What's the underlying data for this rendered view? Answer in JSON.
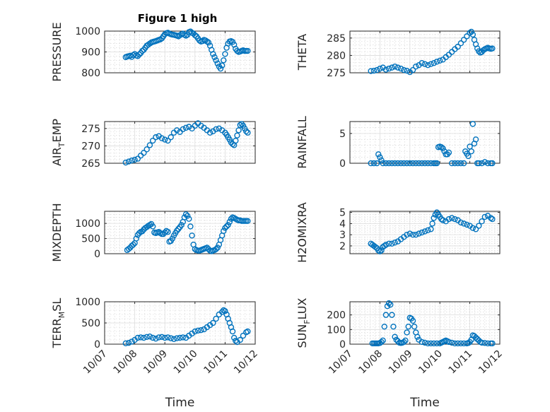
{
  "title": "Figure 1 high",
  "x_ticks": [
    "10/07",
    "10/08",
    "10/09",
    "10/10",
    "10/11",
    "10/12"
  ],
  "x_label": "Time",
  "chart_data": [
    {
      "type": "scatter",
      "panel": "left-1",
      "ylabel": "PRESSURE",
      "ylim": [
        800,
        1000
      ],
      "yticks": [
        "800",
        "900",
        "1000"
      ],
      "xlim": [
        0,
        5
      ],
      "grid": "on, minor on",
      "title": "Figure 1 high",
      "x": [
        0.7,
        0.75,
        0.8,
        0.85,
        0.9,
        0.95,
        1.0,
        1.05,
        1.1,
        1.15,
        1.2,
        1.25,
        1.3,
        1.35,
        1.4,
        1.45,
        1.5,
        1.55,
        1.6,
        1.65,
        1.7,
        1.75,
        1.8,
        1.85,
        1.9,
        1.95,
        2.0,
        2.05,
        2.1,
        2.15,
        2.2,
        2.25,
        2.3,
        2.35,
        2.4,
        2.45,
        2.5,
        2.55,
        2.6,
        2.65,
        2.7,
        2.75,
        2.8,
        2.85,
        2.9,
        2.95,
        3.0,
        3.05,
        3.1,
        3.15,
        3.2,
        3.25,
        3.3,
        3.35,
        3.4,
        3.45,
        3.5,
        3.55,
        3.6,
        3.65,
        3.7,
        3.75,
        3.8,
        3.85,
        3.9,
        3.95,
        4.0,
        4.05,
        4.1,
        4.15,
        4.2,
        4.25,
        4.3,
        4.35,
        4.4,
        4.45,
        4.5,
        4.55,
        4.6,
        4.65,
        4.7,
        4.75
      ],
      "y": [
        875,
        878,
        880,
        882,
        876,
        885,
        890,
        883,
        880,
        888,
        895,
        905,
        910,
        920,
        930,
        935,
        940,
        945,
        948,
        950,
        952,
        955,
        958,
        960,
        965,
        975,
        985,
        990,
        992,
        988,
        985,
        983,
        982,
        980,
        978,
        975,
        980,
        985,
        988,
        982,
        978,
        982,
        995,
        998,
        992,
        988,
        980,
        975,
        965,
        955,
        950,
        952,
        958,
        955,
        950,
        945,
        930,
        910,
        890,
        875,
        860,
        845,
        830,
        820,
        835,
        860,
        890,
        920,
        940,
        950,
        952,
        948,
        935,
        915,
        905,
        900,
        902,
        905,
        908,
        905,
        905,
        905
      ]
    },
    {
      "type": "scatter",
      "panel": "right-1",
      "ylabel": "THETA",
      "ylim": [
        275,
        287
      ],
      "yticks": [
        "275",
        "280",
        "285"
      ],
      "xlim": [
        0,
        5
      ],
      "grid": "on, minor on",
      "x": [
        0.7,
        0.8,
        0.9,
        1.0,
        1.1,
        1.2,
        1.3,
        1.4,
        1.5,
        1.6,
        1.7,
        1.8,
        1.9,
        2.0,
        2.1,
        2.2,
        2.3,
        2.4,
        2.5,
        2.6,
        2.7,
        2.8,
        2.9,
        3.0,
        3.1,
        3.2,
        3.3,
        3.4,
        3.5,
        3.6,
        3.7,
        3.8,
        3.9,
        4.0,
        4.05,
        4.1,
        4.15,
        4.2,
        4.25,
        4.3,
        4.35,
        4.4,
        4.45,
        4.5,
        4.55,
        4.6,
        4.65,
        4.7,
        4.75
      ],
      "y": [
        275.5,
        275.6,
        275.8,
        276.2,
        276.5,
        275.9,
        276.2,
        276.5,
        276.8,
        276.5,
        276.2,
        275.8,
        275.6,
        275.2,
        275.8,
        276.8,
        277.2,
        277.8,
        277.5,
        277.2,
        277.5,
        277.8,
        278.2,
        278.5,
        278.8,
        279.5,
        280.2,
        281.0,
        281.8,
        282.5,
        283.5,
        284.5,
        285.5,
        286.5,
        286.8,
        286.0,
        284.5,
        283.2,
        282.0,
        281.2,
        280.8,
        281.0,
        281.5,
        281.8,
        282.0,
        282.2,
        282.0,
        281.9,
        282.0
      ]
    },
    {
      "type": "scatter",
      "panel": "left-2",
      "ylabel": "AIR_TEMP",
      "ylim": [
        265,
        277
      ],
      "yticks": [
        "265",
        "270",
        "275"
      ],
      "xlim": [
        0,
        5
      ],
      "grid": "on, minor on",
      "x": [
        0.7,
        0.8,
        0.9,
        1.0,
        1.1,
        1.2,
        1.3,
        1.4,
        1.5,
        1.6,
        1.7,
        1.8,
        1.9,
        2.0,
        2.1,
        2.2,
        2.3,
        2.4,
        2.5,
        2.6,
        2.7,
        2.8,
        2.9,
        3.0,
        3.1,
        3.2,
        3.3,
        3.4,
        3.5,
        3.6,
        3.7,
        3.8,
        3.9,
        4.0,
        4.05,
        4.1,
        4.15,
        4.2,
        4.25,
        4.3,
        4.35,
        4.4,
        4.45,
        4.5,
        4.55,
        4.6,
        4.65,
        4.7,
        4.75
      ],
      "y": [
        265.2,
        265.5,
        265.8,
        266.0,
        266.3,
        267.2,
        268.0,
        269.0,
        270.2,
        271.5,
        272.5,
        272.8,
        272.2,
        271.8,
        271.5,
        272.5,
        273.8,
        274.5,
        274.0,
        274.8,
        275.2,
        275.5,
        275.0,
        275.8,
        276.5,
        275.8,
        275.2,
        274.5,
        273.8,
        274.2,
        274.8,
        275.0,
        274.5,
        273.8,
        273.2,
        272.5,
        271.8,
        271.0,
        270.5,
        270.2,
        271.5,
        273.0,
        274.5,
        276.0,
        276.3,
        275.8,
        275.0,
        274.2,
        273.8
      ]
    },
    {
      "type": "scatter",
      "panel": "right-2",
      "ylabel": "RAINFALL",
      "ylim": [
        0,
        7
      ],
      "yticks": [
        "0",
        "5"
      ],
      "xlim": [
        0,
        5
      ],
      "grid": "on, minor on",
      "x": [
        0.7,
        0.8,
        0.9,
        0.95,
        1.0,
        1.05,
        1.1,
        1.2,
        1.3,
        1.4,
        1.5,
        1.6,
        1.7,
        1.8,
        1.9,
        2.0,
        2.1,
        2.2,
        2.3,
        2.4,
        2.5,
        2.6,
        2.7,
        2.8,
        2.85,
        2.9,
        2.95,
        3.0,
        3.05,
        3.1,
        3.15,
        3.2,
        3.25,
        3.3,
        3.4,
        3.5,
        3.6,
        3.7,
        3.8,
        3.85,
        3.9,
        3.95,
        4.0,
        4.05,
        4.1,
        4.15,
        4.2,
        4.25,
        4.3,
        4.4,
        4.5,
        4.6,
        4.7,
        4.75
      ],
      "y": [
        0,
        0,
        0,
        1.5,
        1.0,
        0.5,
        0,
        0,
        0,
        0,
        0,
        0,
        0,
        0,
        0,
        0,
        0,
        0,
        0,
        0,
        0,
        0,
        0,
        0,
        0,
        0,
        2.7,
        2.8,
        2.7,
        2.5,
        2.0,
        1.5,
        1.5,
        1.8,
        0,
        0,
        0,
        0,
        0,
        2.0,
        1.6,
        1.2,
        2.8,
        2.0,
        6.6,
        3.3,
        4.0,
        0,
        0,
        0,
        0.2,
        0,
        0,
        0
      ]
    },
    {
      "type": "scatter",
      "panel": "left-3",
      "ylabel": "MIXDEPTH",
      "ylim": [
        0,
        1400
      ],
      "yticks": [
        "0",
        "500",
        "1000"
      ],
      "xlim": [
        0,
        5
      ],
      "grid": "on, minor on",
      "x": [
        0.75,
        0.8,
        0.85,
        0.9,
        0.95,
        1.0,
        1.05,
        1.1,
        1.15,
        1.2,
        1.25,
        1.3,
        1.35,
        1.4,
        1.45,
        1.5,
        1.55,
        1.6,
        1.65,
        1.7,
        1.75,
        1.8,
        1.85,
        1.9,
        1.95,
        2.0,
        2.05,
        2.1,
        2.15,
        2.2,
        2.25,
        2.3,
        2.35,
        2.4,
        2.45,
        2.5,
        2.55,
        2.6,
        2.65,
        2.7,
        2.75,
        2.8,
        2.85,
        2.9,
        2.95,
        3.0,
        3.05,
        3.1,
        3.15,
        3.2,
        3.25,
        3.3,
        3.35,
        3.4,
        3.45,
        3.5,
        3.55,
        3.6,
        3.65,
        3.7,
        3.75,
        3.8,
        3.85,
        3.9,
        3.95,
        4.0,
        4.05,
        4.1,
        4.15,
        4.2,
        4.25,
        4.3,
        4.35,
        4.4,
        4.45,
        4.5,
        4.55,
        4.6,
        4.65,
        4.7,
        4.75
      ],
      "y": [
        120,
        160,
        200,
        260,
        300,
        350,
        500,
        620,
        680,
        720,
        740,
        800,
        850,
        880,
        920,
        950,
        980,
        900,
        700,
        680,
        700,
        720,
        680,
        650,
        650,
        700,
        750,
        720,
        400,
        420,
        500,
        600,
        680,
        760,
        820,
        880,
        950,
        1050,
        1200,
        1300,
        1250,
        1150,
        900,
        600,
        300,
        150,
        120,
        100,
        100,
        120,
        140,
        160,
        180,
        200,
        150,
        100,
        80,
        100,
        120,
        150,
        200,
        300,
        450,
        600,
        750,
        850,
        900,
        950,
        1050,
        1150,
        1200,
        1180,
        1150,
        1120,
        1100,
        1100,
        1080,
        1080,
        1080,
        1080,
        1080
      ]
    },
    {
      "type": "scatter",
      "panel": "right-3",
      "ylabel": "H2OMIXRA",
      "ylim": [
        1.3,
        5.1
      ],
      "yticks": [
        "2",
        "3",
        "4",
        "5"
      ],
      "xlim": [
        0,
        5
      ],
      "grid": "on, minor on",
      "x": [
        0.7,
        0.75,
        0.8,
        0.85,
        0.9,
        0.95,
        1.0,
        1.05,
        1.1,
        1.15,
        1.2,
        1.3,
        1.4,
        1.5,
        1.6,
        1.7,
        1.8,
        1.9,
        2.0,
        2.1,
        2.2,
        2.3,
        2.4,
        2.5,
        2.6,
        2.7,
        2.75,
        2.8,
        2.85,
        2.9,
        2.95,
        3.0,
        3.05,
        3.1,
        3.2,
        3.3,
        3.4,
        3.5,
        3.6,
        3.7,
        3.8,
        3.9,
        4.0,
        4.1,
        4.2,
        4.3,
        4.4,
        4.5,
        4.6,
        4.7,
        4.75
      ],
      "y": [
        2.2,
        2.1,
        2.0,
        1.9,
        1.8,
        1.6,
        1.5,
        1.6,
        1.9,
        2.0,
        2.1,
        2.2,
        2.2,
        2.3,
        2.4,
        2.6,
        2.8,
        3.0,
        3.1,
        3.0,
        3.0,
        3.1,
        3.2,
        3.3,
        3.4,
        3.5,
        4.0,
        4.5,
        4.8,
        5.0,
        4.8,
        4.6,
        4.4,
        4.3,
        4.2,
        4.4,
        4.5,
        4.4,
        4.3,
        4.1,
        4.0,
        3.9,
        3.8,
        3.6,
        3.5,
        3.8,
        4.2,
        4.6,
        4.7,
        4.5,
        4.4
      ]
    },
    {
      "type": "scatter",
      "panel": "left-4",
      "ylabel": "TERR_MSL",
      "ylim": [
        0,
        1000
      ],
      "yticks": [
        "0",
        "500",
        "1000"
      ],
      "xlim": [
        0,
        5
      ],
      "grid": "on, minor on",
      "x": [
        0.7,
        0.8,
        0.9,
        1.0,
        1.1,
        1.2,
        1.3,
        1.4,
        1.5,
        1.6,
        1.7,
        1.8,
        1.9,
        2.0,
        2.1,
        2.2,
        2.3,
        2.4,
        2.5,
        2.6,
        2.7,
        2.8,
        2.9,
        3.0,
        3.1,
        3.2,
        3.3,
        3.4,
        3.5,
        3.6,
        3.7,
        3.8,
        3.9,
        3.95,
        4.0,
        4.05,
        4.1,
        4.15,
        4.2,
        4.25,
        4.3,
        4.35,
        4.4,
        4.5,
        4.6,
        4.7,
        4.75
      ],
      "y": [
        20,
        30,
        60,
        100,
        150,
        160,
        150,
        170,
        180,
        150,
        130,
        160,
        170,
        150,
        160,
        140,
        120,
        140,
        150,
        160,
        150,
        200,
        250,
        300,
        320,
        330,
        350,
        400,
        450,
        500,
        600,
        700,
        760,
        800,
        780,
        700,
        600,
        500,
        400,
        300,
        150,
        80,
        50,
        100,
        200,
        280,
        300
      ]
    },
    {
      "type": "scatter",
      "panel": "right-4",
      "ylabel": "SUN_FLUX",
      "ylim": [
        0,
        290
      ],
      "yticks": [
        "0",
        "100",
        "200"
      ],
      "xlim": [
        0,
        5
      ],
      "grid": "on, minor on",
      "x": [
        0.75,
        0.8,
        0.85,
        0.9,
        0.95,
        1.0,
        1.05,
        1.1,
        1.15,
        1.2,
        1.25,
        1.3,
        1.35,
        1.4,
        1.45,
        1.5,
        1.55,
        1.6,
        1.65,
        1.7,
        1.75,
        1.8,
        1.85,
        1.9,
        1.95,
        2.0,
        2.05,
        2.1,
        2.15,
        2.2,
        2.25,
        2.3,
        2.4,
        2.5,
        2.6,
        2.7,
        2.8,
        2.9,
        3.0,
        3.05,
        3.1,
        3.15,
        3.2,
        3.25,
        3.3,
        3.4,
        3.5,
        3.6,
        3.7,
        3.8,
        3.9,
        3.95,
        4.0,
        4.05,
        4.1,
        4.15,
        4.2,
        4.25,
        4.3,
        4.35,
        4.4,
        4.5,
        4.6,
        4.7,
        4.75
      ],
      "y": [
        5,
        5,
        5,
        5,
        5,
        8,
        15,
        25,
        120,
        200,
        260,
        280,
        270,
        200,
        120,
        50,
        30,
        20,
        10,
        8,
        10,
        15,
        25,
        80,
        120,
        180,
        175,
        160,
        120,
        80,
        50,
        30,
        15,
        10,
        5,
        5,
        5,
        5,
        5,
        10,
        15,
        20,
        25,
        20,
        15,
        10,
        5,
        5,
        5,
        5,
        5,
        8,
        15,
        30,
        60,
        55,
        45,
        35,
        25,
        15,
        10,
        8,
        5,
        5,
        5
      ]
    }
  ]
}
